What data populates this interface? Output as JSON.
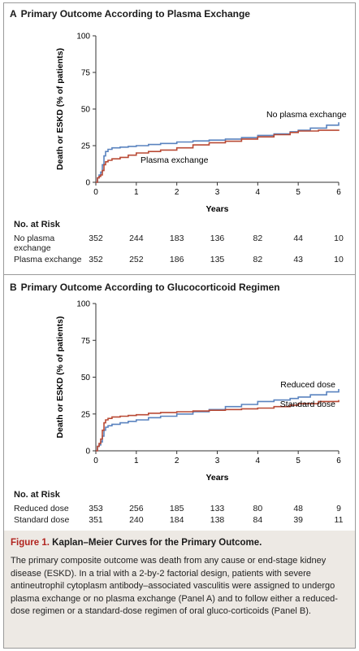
{
  "figure": {
    "caption_label": "Figure 1.",
    "caption_title": "Kaplan–Meier Curves for the Primary Outcome.",
    "caption_body": "The primary composite outcome was death from any cause or end-stage kidney disease (ESKD). In a trial with a 2-by-2 factorial design, patients with severe antineutrophil cytoplasm antibody–associated vasculitis were assigned to undergo plasma exchange or no plasma exchange (Panel A) and to follow either a reduced-dose regimen or a standard-dose regimen of oral gluco-corticoids (Panel B)."
  },
  "colors": {
    "blue": "#5a83bf",
    "red": "#b94a35",
    "axis": "#333333"
  },
  "chart_data": [
    {
      "type": "line",
      "panel_letter": "A",
      "title": "Primary Outcome According to Plasma Exchange",
      "xlabel": "Years",
      "ylabel": "Death or ESKD (% of patients)",
      "xlim": [
        0,
        6
      ],
      "ylim": [
        0,
        100
      ],
      "xticks": [
        0,
        1,
        2,
        3,
        4,
        5,
        6
      ],
      "yticks": [
        0,
        25,
        50,
        75,
        100
      ],
      "series": [
        {
          "name": "No plasma exchange",
          "color": "#5a83bf",
          "x": [
            0,
            0.04,
            0.08,
            0.12,
            0.16,
            0.2,
            0.24,
            0.3,
            0.4,
            0.6,
            0.8,
            1.0,
            1.3,
            1.6,
            2.0,
            2.4,
            2.8,
            3.2,
            3.6,
            4.0,
            4.4,
            4.8,
            5.0,
            5.3,
            5.7,
            6.0
          ],
          "y": [
            0,
            3,
            5,
            7,
            12,
            18,
            21,
            22.5,
            23.5,
            24,
            24.5,
            25,
            25.8,
            26.5,
            27.5,
            28.2,
            28.8,
            29.5,
            30.5,
            32,
            33,
            34.5,
            35.5,
            37,
            39,
            41
          ]
        },
        {
          "name": "Plasma exchange",
          "color": "#b94a35",
          "x": [
            0,
            0.04,
            0.08,
            0.12,
            0.16,
            0.2,
            0.24,
            0.3,
            0.4,
            0.6,
            0.8,
            1.0,
            1.3,
            1.6,
            2.0,
            2.4,
            2.8,
            3.2,
            3.6,
            4.0,
            4.4,
            4.8,
            5.0,
            5.5,
            6.0
          ],
          "y": [
            0,
            3,
            4,
            5,
            8,
            12,
            14,
            15,
            16,
            17,
            18.5,
            20,
            21,
            22,
            23.5,
            25.5,
            27,
            28,
            29.5,
            31,
            32.5,
            34,
            35,
            35.5,
            36
          ]
        }
      ],
      "risk_table": {
        "header": "No. at Risk",
        "rows": [
          {
            "label": "No plasma exchange",
            "values": [
              "352",
              "244",
              "183",
              "136",
              "82",
              "44",
              "10"
            ]
          },
          {
            "label": "Plasma exchange",
            "values": [
              "352",
              "252",
              "186",
              "135",
              "82",
              "43",
              "10"
            ]
          }
        ]
      }
    },
    {
      "type": "line",
      "panel_letter": "B",
      "title": "Primary Outcome According to Glucocorticoid Regimen",
      "xlabel": "Years",
      "ylabel": "Death or ESKD (% of patients)",
      "xlim": [
        0,
        6
      ],
      "ylim": [
        0,
        100
      ],
      "xticks": [
        0,
        1,
        2,
        3,
        4,
        5,
        6
      ],
      "yticks": [
        0,
        25,
        50,
        75,
        100
      ],
      "series": [
        {
          "name": "Reduced dose",
          "color": "#5a83bf",
          "x": [
            0,
            0.04,
            0.08,
            0.12,
            0.16,
            0.2,
            0.24,
            0.3,
            0.4,
            0.6,
            0.8,
            1.0,
            1.3,
            1.6,
            2.0,
            2.4,
            2.8,
            3.2,
            3.6,
            4.0,
            4.4,
            4.8,
            5.0,
            5.3,
            5.7,
            6.0
          ],
          "y": [
            0,
            3,
            4,
            6,
            10,
            14,
            16,
            17,
            18,
            19,
            20,
            21,
            22.5,
            23.5,
            25,
            26.5,
            28,
            30,
            31.5,
            33.5,
            34.5,
            35.5,
            36.5,
            38,
            40,
            42
          ]
        },
        {
          "name": "Standard dose",
          "color": "#b94a35",
          "x": [
            0,
            0.04,
            0.08,
            0.12,
            0.16,
            0.2,
            0.24,
            0.3,
            0.4,
            0.6,
            0.8,
            1.0,
            1.3,
            1.6,
            2.0,
            2.4,
            2.8,
            3.2,
            3.6,
            4.0,
            4.4,
            4.8,
            5.0,
            5.5,
            6.0
          ],
          "y": [
            0,
            3,
            5,
            8,
            14,
            19,
            21,
            22,
            23,
            23.5,
            24,
            24.5,
            25.5,
            26,
            26.5,
            27,
            27.5,
            28,
            28.5,
            29,
            30,
            31,
            32,
            33.5,
            34.5
          ]
        }
      ],
      "risk_table": {
        "header": "No. at Risk",
        "rows": [
          {
            "label": "Reduced dose",
            "values": [
              "353",
              "256",
              "185",
              "133",
              "80",
              "48",
              "9"
            ]
          },
          {
            "label": "Standard dose",
            "values": [
              "351",
              "240",
              "184",
              "138",
              "84",
              "39",
              "11"
            ]
          }
        ]
      }
    }
  ]
}
